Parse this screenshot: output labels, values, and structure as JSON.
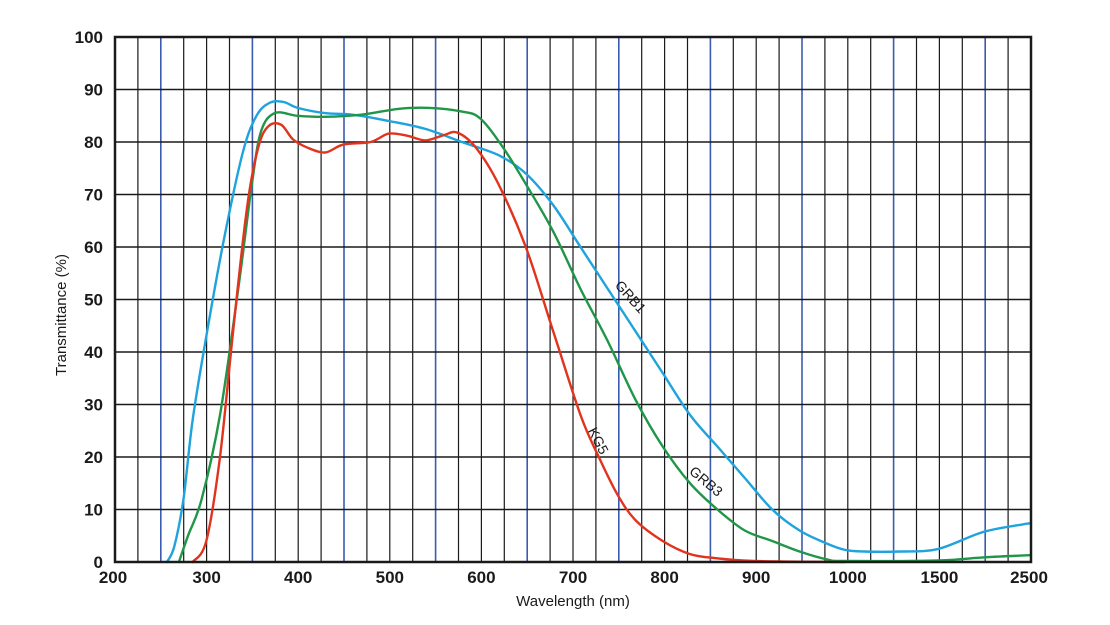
{
  "chart_data": {
    "type": "line",
    "xlabel": "Wavelength (nm)",
    "ylabel": "Transmittance (%)",
    "ylim": [
      0,
      100
    ],
    "y_ticks": [
      0,
      10,
      20,
      30,
      40,
      50,
      60,
      70,
      80,
      90,
      100
    ],
    "x_ticks": [
      200,
      300,
      400,
      500,
      600,
      700,
      800,
      900,
      1000,
      1500,
      2500
    ],
    "x_scale": "piecewise: linear 200–1000 nm, compressed 1000–1500 and 1500–2500 nm",
    "grid": true,
    "accent_gridline_color": "#3a5bb0",
    "series": [
      {
        "name": "GRB1",
        "color": "#1ea3dc",
        "points": [
          [
            257,
            0
          ],
          [
            265,
            3
          ],
          [
            275,
            12
          ],
          [
            285,
            27
          ],
          [
            300,
            43
          ],
          [
            320,
            62
          ],
          [
            340,
            78
          ],
          [
            355,
            85
          ],
          [
            370,
            87.5
          ],
          [
            385,
            87.6
          ],
          [
            400,
            86.5
          ],
          [
            430,
            85.5
          ],
          [
            460,
            85.2
          ],
          [
            500,
            84
          ],
          [
            540,
            82.5
          ],
          [
            580,
            80
          ],
          [
            620,
            77.5
          ],
          [
            650,
            74
          ],
          [
            680,
            68
          ],
          [
            710,
            60
          ],
          [
            740,
            52
          ],
          [
            770,
            44
          ],
          [
            800,
            36
          ],
          [
            830,
            28
          ],
          [
            860,
            22
          ],
          [
            890,
            16
          ],
          [
            920,
            10
          ],
          [
            950,
            6
          ],
          [
            980,
            3.5
          ],
          [
            1000,
            2.3
          ],
          [
            1100,
            2
          ],
          [
            1300,
            2
          ],
          [
            1500,
            2.5
          ],
          [
            2000,
            5.8
          ],
          [
            2500,
            7.4
          ]
        ]
      },
      {
        "name": "GRB3",
        "color": "#1f9648",
        "points": [
          [
            270,
            0
          ],
          [
            280,
            5
          ],
          [
            295,
            12
          ],
          [
            315,
            28
          ],
          [
            335,
            52
          ],
          [
            350,
            72
          ],
          [
            360,
            82
          ],
          [
            375,
            85.5
          ],
          [
            400,
            85
          ],
          [
            430,
            84.8
          ],
          [
            470,
            85.2
          ],
          [
            510,
            86.3
          ],
          [
            545,
            86.5
          ],
          [
            580,
            85.8
          ],
          [
            600,
            84.5
          ],
          [
            625,
            79
          ],
          [
            650,
            72
          ],
          [
            680,
            63
          ],
          [
            710,
            52
          ],
          [
            740,
            42
          ],
          [
            770,
            31
          ],
          [
            800,
            22
          ],
          [
            830,
            15
          ],
          [
            860,
            10
          ],
          [
            890,
            6
          ],
          [
            920,
            4
          ],
          [
            950,
            2
          ],
          [
            980,
            0.5
          ],
          [
            1000,
            0.2
          ],
          [
            1500,
            0.3
          ],
          [
            2000,
            0.9
          ],
          [
            2500,
            1.3
          ]
        ]
      },
      {
        "name": "KG5",
        "color": "#e1331d",
        "points": [
          [
            285,
            0
          ],
          [
            300,
            4
          ],
          [
            315,
            20
          ],
          [
            330,
            45
          ],
          [
            345,
            68
          ],
          [
            357,
            79
          ],
          [
            368,
            83
          ],
          [
            382,
            83.3
          ],
          [
            395,
            80.5
          ],
          [
            410,
            79
          ],
          [
            430,
            78
          ],
          [
            450,
            79.5
          ],
          [
            480,
            80
          ],
          [
            500,
            81.6
          ],
          [
            520,
            81.2
          ],
          [
            540,
            80.3
          ],
          [
            560,
            81.3
          ],
          [
            575,
            81.8
          ],
          [
            595,
            79
          ],
          [
            620,
            72
          ],
          [
            650,
            60
          ],
          [
            680,
            44
          ],
          [
            710,
            28
          ],
          [
            730,
            20
          ],
          [
            750,
            13
          ],
          [
            770,
            8
          ],
          [
            800,
            4
          ],
          [
            830,
            1.5
          ],
          [
            860,
            0.7
          ],
          [
            900,
            0.2
          ],
          [
            1000,
            0
          ]
        ]
      }
    ],
    "curve_labels": [
      "GRB1",
      "GRB3",
      "KG5"
    ]
  }
}
